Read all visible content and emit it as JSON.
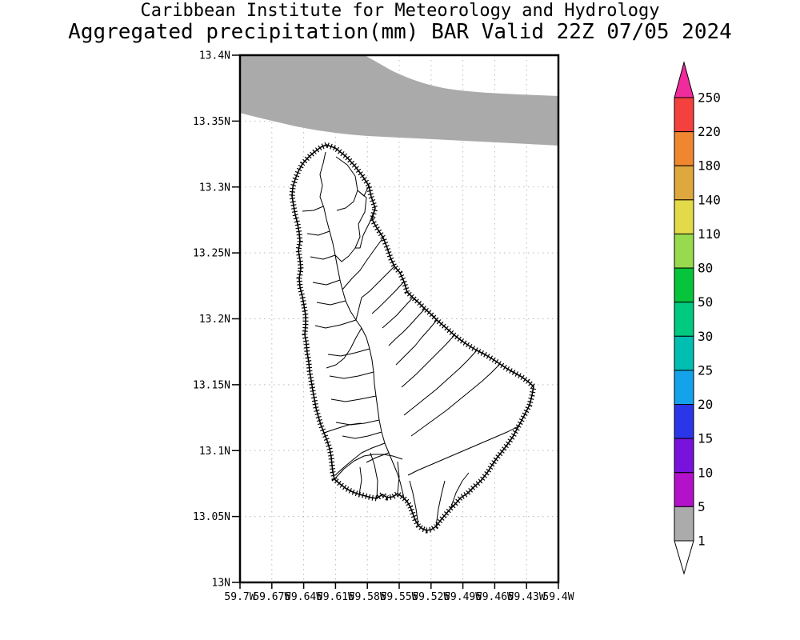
{
  "title": {
    "line1": "Caribbean Institute for Meteorology and Hydrology",
    "line2": "Aggregated precipitation(mm) BAR Valid 22Z 07/05 2024"
  },
  "axes": {
    "lat_ticks": [
      "13.4N",
      "13.35N",
      "13.3N",
      "13.25N",
      "13.2N",
      "13.15N",
      "13.1N",
      "13.05N",
      "13N"
    ],
    "lon_ticks": [
      "59.7W",
      "59.67W",
      "59.64W",
      "59.61W",
      "59.58W",
      "59.55W",
      "59.52W",
      "59.49W",
      "59.46W",
      "59.43W",
      "59.4W"
    ]
  },
  "colorbar": {
    "labels": [
      "250",
      "220",
      "180",
      "140",
      "110",
      "80",
      "50",
      "30",
      "25",
      "20",
      "15",
      "10",
      "5",
      "1"
    ],
    "segment_colors_top_to_bottom": [
      "#f4413d",
      "#ef8630",
      "#dfa83f",
      "#e2da49",
      "#98da4e",
      "#06c53b",
      "#00ca80",
      "#00bfb2",
      "#14a3eb",
      "#2b36e9",
      "#7a12de",
      "#b411ca",
      "#ababab"
    ],
    "over_max_color": "#f02b9b",
    "under_min_color": "#ffffff"
  },
  "map": {
    "shaded_band_color": "#aaaaaa",
    "background_color": "#ffffff"
  },
  "chart_data": {
    "type": "heatmap",
    "title": "Aggregated precipitation(mm) BAR Valid 22Z 07/05 2024",
    "units": "mm",
    "scale_levels": [
      1,
      5,
      10,
      15,
      20,
      25,
      30,
      50,
      80,
      110,
      140,
      180,
      220,
      250
    ],
    "lat_range": [
      13.0,
      13.4
    ],
    "lon_range": [
      -59.7,
      -59.4
    ],
    "grid": true,
    "shaded_regions": [
      {
        "value_range_mm": "1-5",
        "color": "#aaaaaa",
        "description": "band across top of domain from 13.33-13.4N sloping down toward east"
      }
    ]
  }
}
